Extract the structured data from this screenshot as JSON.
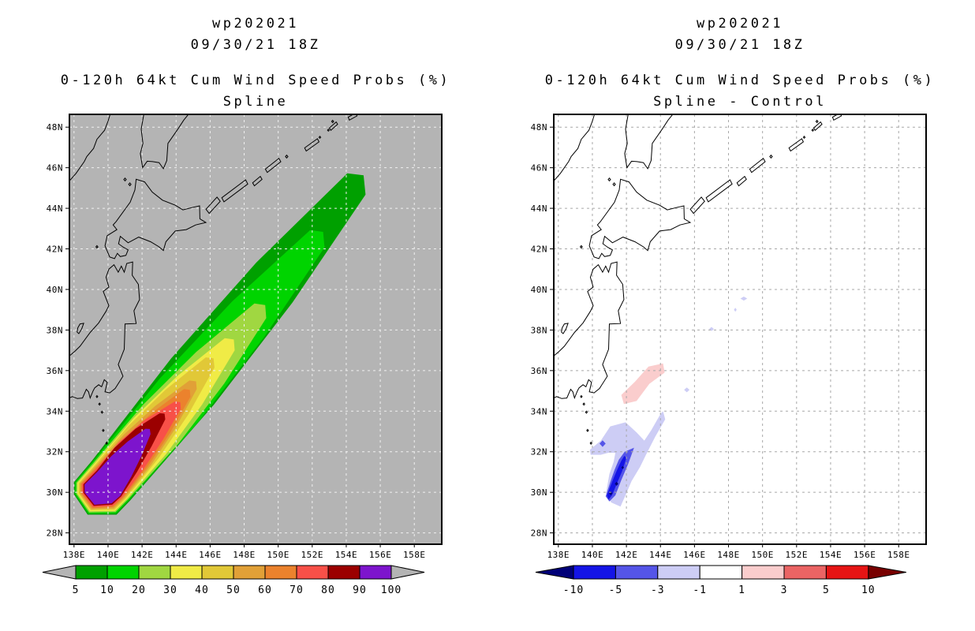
{
  "page": {
    "background": "#ffffff"
  },
  "panels": [
    {
      "name": "spline",
      "title_line1": "wp202021",
      "title_line2": "09/30/21 18Z",
      "title_line3": "0-120h 64kt Cum Wind Speed Probs (%)",
      "title_line4": "Spline"
    },
    {
      "name": "spline-minus-control",
      "title_line1": "wp202021",
      "title_line2": "09/30/21 18Z",
      "title_line3": "0-120h 64kt Cum Wind Speed Probs (%)",
      "title_line4": "Spline - Control"
    }
  ],
  "chart_data": [
    {
      "type": "contour-map",
      "panel": "Spline",
      "storm": "wp202021",
      "valid": "09/30/21 18Z",
      "quantity": "0-120h 64kt Cum Wind Speed Probs (%)",
      "units": "%",
      "map_background": "#b4b4b4",
      "grid_color": "#f0f0f0",
      "lon_range": [
        137.7,
        159.6
      ],
      "lat_range": [
        27.4,
        48.6
      ],
      "lon_tick_values": [
        138,
        140,
        142,
        144,
        146,
        148,
        150,
        152,
        154,
        156,
        158
      ],
      "lon_tick_labels": [
        "138E",
        "140E",
        "142E",
        "144E",
        "146E",
        "148E",
        "150E",
        "152E",
        "154E",
        "156E",
        "158E"
      ],
      "lat_tick_values": [
        48,
        46,
        44,
        42,
        40,
        38,
        36,
        34,
        32,
        30,
        28
      ],
      "lat_tick_labels": [
        "48N",
        "46N",
        "44N",
        "42N",
        "40N",
        "38N",
        "36N",
        "34N",
        "32N",
        "30N",
        "28N"
      ],
      "levels_percent": [
        5,
        10,
        20,
        30,
        40,
        50,
        60,
        70,
        80,
        90,
        100
      ],
      "plume": {
        "comment": "probability plume axis runs SW(139.9E,30.2N) to NE(154.6E,45.2N); ring tip = NE end of each probability contour in [lon,lat]",
        "cap_center": [
          139.85,
          30.15
        ],
        "cap_outer": [
          [
            139.05,
            31.55
          ],
          [
            138.0,
            30.5
          ],
          [
            138.0,
            29.9
          ],
          [
            138.8,
            28.9
          ],
          [
            140.5,
            28.9
          ],
          [
            141.3,
            29.6
          ]
        ],
        "cap_inset_step": 0.07,
        "rings": [
          {
            "level": 5,
            "color": "#00a000",
            "tip": [
              154.6,
              45.2
            ],
            "tip_w": 0.75,
            "bow_nw": 0.55,
            "bow_se": 0.5,
            "cap_i": 0
          },
          {
            "level": 10,
            "color": "#00d400",
            "tip": [
              152.3,
              42.5
            ],
            "tip_w": 0.6,
            "bow_nw": 0.5,
            "bow_se": 0.45,
            "cap_i": 1
          },
          {
            "level": 20,
            "color": "#a0d741",
            "tip": [
              148.95,
              38.95
            ],
            "tip_w": 0.5,
            "bow_nw": 0.4,
            "bow_se": 0.4,
            "cap_i": 2
          },
          {
            "level": 30,
            "color": "#f0eb46",
            "tip": [
              147.15,
              37.3
            ],
            "tip_w": 0.42,
            "bow_nw": 0.35,
            "bow_se": 0.35,
            "cap_i": 3
          },
          {
            "level": 40,
            "color": "#e1c837",
            "tip": [
              146.0,
              36.4
            ],
            "tip_w": 0.36,
            "bow_nw": 0.3,
            "bow_se": 0.3,
            "cap_i": 4
          },
          {
            "level": 50,
            "color": "#e1a037",
            "tip": [
              145.0,
              35.3
            ],
            "tip_w": 0.3,
            "bow_nw": 0.27,
            "bow_se": 0.25,
            "cap_i": 5
          },
          {
            "level": 60,
            "color": "#eb822d",
            "tip": [
              144.65,
              34.9
            ],
            "tip_w": 0.27,
            "bow_nw": 0.22,
            "bow_se": 0.2,
            "cap_i": 6
          },
          {
            "level": 70,
            "color": "#f85048",
            "tip": [
              144.1,
              34.3
            ],
            "tip_w": 0.25,
            "bow_nw": 0.35,
            "bow_se": 0.15,
            "cap_i": 7
          },
          {
            "level": 80,
            "color": "#9b0000",
            "tip": [
              143.2,
              33.75
            ],
            "tip_w": 0.22,
            "bow_nw": 0.3,
            "bow_se": 0.1,
            "cap_i": 8
          },
          {
            "level": 90,
            "color": "#7d14cd",
            "tip": [
              142.35,
              33.0
            ],
            "tip_w": 0.2,
            "bow_nw": 0.15,
            "bow_se": 0.1,
            "cap_i": 9
          }
        ]
      },
      "colorbar": {
        "labels": [
          "5",
          "10",
          "20",
          "30",
          "40",
          "50",
          "60",
          "70",
          "80",
          "90",
          "100"
        ],
        "colors": [
          "#00a000",
          "#00d400",
          "#a0d741",
          "#f0eb46",
          "#e1c837",
          "#e1a037",
          "#eb822d",
          "#f85048",
          "#9b0000",
          "#7d14cd"
        ],
        "arrow_left_color": "#b4b4b4",
        "arrow_right_color": "#b4b4b4"
      }
    },
    {
      "type": "contour-map",
      "panel": "Spline - Control",
      "storm": "wp202021",
      "valid": "09/30/21 18Z",
      "quantity": "0-120h 64kt Cum Wind Speed Probs (%)",
      "units": "%",
      "map_background": "#ffffff",
      "grid_color": "#a8a8a8",
      "lon_range": [
        137.7,
        159.6
      ],
      "lat_range": [
        27.4,
        48.6
      ],
      "lon_tick_values": [
        138,
        140,
        142,
        144,
        146,
        148,
        150,
        152,
        154,
        156,
        158
      ],
      "lon_tick_labels": [
        "138E",
        "140E",
        "142E",
        "144E",
        "146E",
        "148E",
        "150E",
        "152E",
        "154E",
        "156E",
        "158E"
      ],
      "lat_tick_values": [
        48,
        46,
        44,
        42,
        40,
        38,
        36,
        34,
        32,
        30,
        28
      ],
      "lat_tick_labels": [
        "48N",
        "46N",
        "44N",
        "42N",
        "40N",
        "38N",
        "36N",
        "34N",
        "32N",
        "30N",
        "28N"
      ],
      "diff_levels": [
        -10,
        -5,
        -3,
        -1,
        1,
        3,
        5,
        10
      ],
      "patches": [
        {
          "range": "1 to 3",
          "color": "#facdcd",
          "polygon": [
            [
              141.85,
              34.35
            ],
            [
              142.6,
              34.5
            ],
            [
              143.35,
              35.35
            ],
            [
              144.25,
              35.9
            ],
            [
              144.15,
              36.35
            ],
            [
              143.3,
              36.2
            ],
            [
              142.5,
              35.45
            ],
            [
              141.7,
              34.8
            ]
          ]
        },
        {
          "range": "-3 to -1",
          "color": "#cdcdf5",
          "polygon": [
            [
              139.85,
              32.1
            ],
            [
              140.5,
              32.55
            ],
            [
              141.05,
              33.25
            ],
            [
              141.95,
              33.45
            ],
            [
              142.6,
              32.95
            ],
            [
              143.05,
              32.55
            ],
            [
              143.45,
              33.05
            ],
            [
              144.0,
              33.85
            ],
            [
              144.15,
              34.0
            ],
            [
              144.28,
              33.6
            ],
            [
              143.7,
              32.75
            ],
            [
              143.15,
              31.85
            ],
            [
              142.8,
              31.25
            ],
            [
              142.3,
              30.55
            ],
            [
              142.0,
              29.95
            ],
            [
              141.65,
              29.3
            ],
            [
              141.1,
              29.5
            ],
            [
              140.8,
              29.95
            ],
            [
              141.0,
              30.9
            ],
            [
              141.25,
              31.5
            ],
            [
              141.35,
              31.95
            ],
            [
              140.95,
              31.95
            ],
            [
              140.5,
              31.85
            ],
            [
              139.9,
              31.85
            ]
          ]
        },
        {
          "range": "-5 to -3",
          "color": "#5555e8",
          "polygon": [
            [
              142.45,
              32.2
            ],
            [
              142.1,
              31.4
            ],
            [
              141.7,
              30.6
            ],
            [
              141.35,
              29.85
            ],
            [
              141.0,
              29.55
            ],
            [
              140.78,
              29.8
            ],
            [
              141.05,
              30.5
            ],
            [
              141.3,
              31.1
            ],
            [
              141.55,
              31.6
            ],
            [
              141.9,
              32.0
            ]
          ]
        },
        {
          "range": "-10 to -5",
          "color": "#1414e6",
          "polygon": [
            [
              142.0,
              31.7
            ],
            [
              141.75,
              31.05
            ],
            [
              141.45,
              30.45
            ],
            [
              141.15,
              29.85
            ],
            [
              140.95,
              29.65
            ],
            [
              140.85,
              29.85
            ],
            [
              141.15,
              30.5
            ],
            [
              141.45,
              31.1
            ],
            [
              141.7,
              31.55
            ],
            [
              141.88,
              31.8
            ]
          ]
        },
        {
          "range": "-5 to -3",
          "color": "#5555e8",
          "diamond": [
            140.6,
            32.4,
            0.18,
            0.16
          ]
        },
        {
          "range": "-3 to -1",
          "color": "#cdcdf5",
          "diamond": [
            145.55,
            35.05,
            0.16,
            0.12
          ]
        },
        {
          "range": "-3 to -1",
          "color": "#cdcdf5",
          "diamond": [
            147.0,
            38.05,
            0.14,
            0.1
          ]
        },
        {
          "range": "-3 to -1",
          "color": "#cdcdf5",
          "diamond": [
            148.4,
            39.0,
            0.08,
            0.1
          ]
        },
        {
          "range": "-3 to -1",
          "color": "#cdcdf5",
          "diamond": [
            148.9,
            39.55,
            0.2,
            0.1
          ]
        },
        {
          "range": "below -10",
          "color": "#000078",
          "diamond": [
            141.08,
            29.95,
            0.1,
            0.1
          ]
        },
        {
          "range": "below -10",
          "color": "#000078",
          "diamond": [
            141.42,
            30.42,
            0.1,
            0.1
          ]
        },
        {
          "range": "below -10",
          "color": "#000078",
          "diamond": [
            141.78,
            31.22,
            0.08,
            0.08
          ]
        }
      ],
      "colorbar": {
        "labels": [
          "-10",
          "-5",
          "-3",
          "-1",
          "1",
          "3",
          "5",
          "10"
        ],
        "colors": [
          "#1414e6",
          "#5555e8",
          "#cdcdf5",
          "#ffffff",
          "#facdcd",
          "#eb6464",
          "#e61414"
        ],
        "arrow_left_color": "#000078",
        "arrow_right_color": "#780000"
      }
    }
  ]
}
